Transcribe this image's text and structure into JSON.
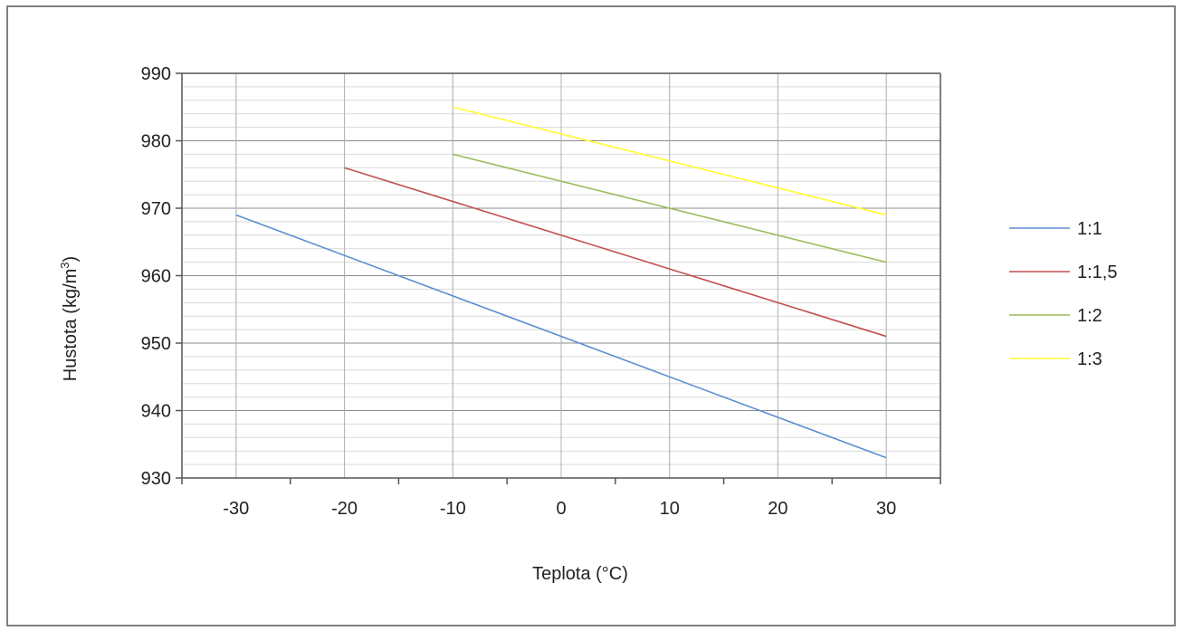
{
  "chart_data": {
    "type": "line",
    "title": "",
    "xlabel": "Teplota  (°C)",
    "ylabel_main": "Hustota  (kg/m",
    "ylabel_sup": "3",
    "ylabel_close": ")",
    "xlim": [
      -35,
      35
    ],
    "ylim": [
      930,
      990
    ],
    "xticks": [
      -30,
      -20,
      -10,
      0,
      10,
      20,
      30
    ],
    "yticks": [
      930,
      940,
      950,
      960,
      970,
      980,
      990
    ],
    "grid": true,
    "legend_position": "right",
    "series": [
      {
        "name": "1:1",
        "color": "#5b8fd0",
        "x": [
          -30,
          30
        ],
        "y": [
          969,
          933
        ]
      },
      {
        "name": "1:1,5",
        "color": "#c0504d",
        "x": [
          -20,
          30
        ],
        "y": [
          976,
          951
        ]
      },
      {
        "name": "1:2",
        "color": "#9bbb59",
        "x": [
          -10,
          30
        ],
        "y": [
          978,
          962
        ]
      },
      {
        "name": "1:3",
        "color": "#ffff33",
        "x": [
          -10,
          30
        ],
        "y": [
          985,
          969
        ]
      }
    ]
  }
}
